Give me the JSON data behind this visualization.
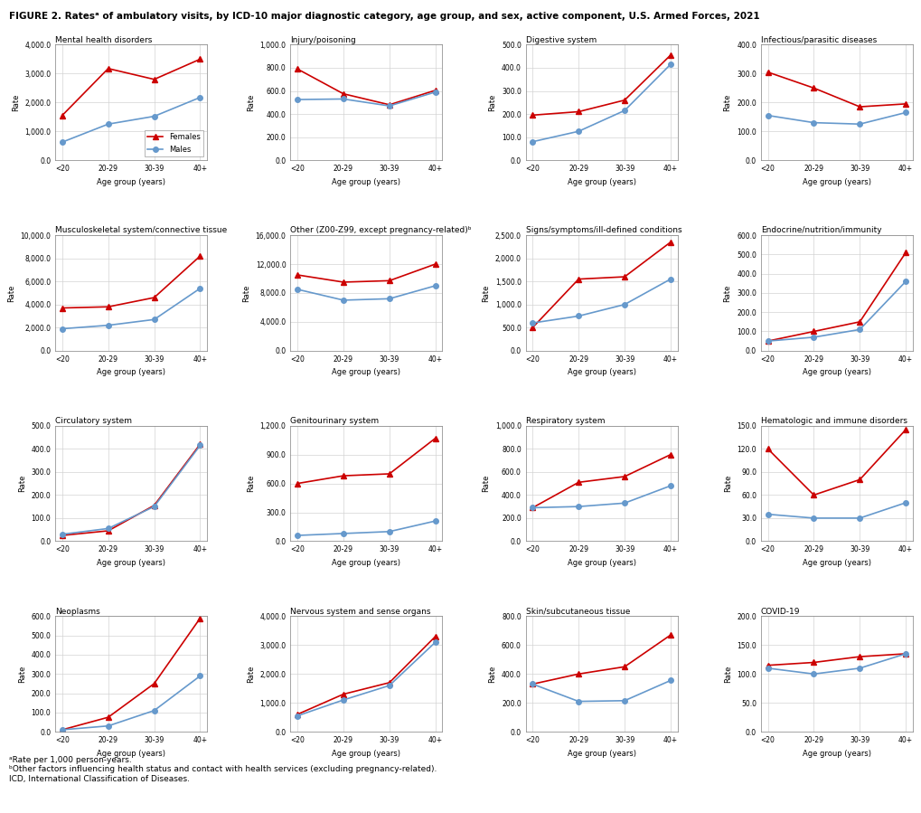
{
  "title": "FIGURE 2. Ratesᵃ of ambulatory visits, by ICD-10 major diagnostic category, age group, and sex, active component, U.S. Armed Forces, 2021",
  "footnotes": [
    "ᵃRate per 1,000 person-years.",
    "ᵇOther factors influencing health status and contact with health services (excluding pregnancy-related).",
    "ICD, International Classification of Diseases."
  ],
  "age_groups": [
    "<20",
    "20-29",
    "30-39",
    "40+"
  ],
  "female_color": "#cc0000",
  "male_color": "#6699cc",
  "charts": [
    {
      "title": "Mental health disorders",
      "ylim": [
        0,
        4000
      ],
      "yticks": [
        0,
        1000,
        2000,
        3000,
        4000
      ],
      "ytick_labels": [
        "0.0",
        "1,000.0",
        "2,000.0",
        "3,000.0",
        "4,000.0"
      ],
      "females": [
        1550,
        3175,
        2800,
        3500
      ],
      "males": [
        625,
        1250,
        1520,
        2175
      ],
      "legend": true
    },
    {
      "title": "Injury/poisoning",
      "ylim": [
        0,
        1000
      ],
      "yticks": [
        0,
        200,
        400,
        600,
        800,
        1000
      ],
      "ytick_labels": [
        "0.0",
        "200.0",
        "400.0",
        "600.0",
        "800.0",
        "1,000.0"
      ],
      "females": [
        790,
        575,
        480,
        605
      ],
      "males": [
        525,
        530,
        470,
        590
      ],
      "legend": false
    },
    {
      "title": "Digestive system",
      "ylim": [
        0,
        500
      ],
      "yticks": [
        0,
        100,
        200,
        300,
        400,
        500
      ],
      "ytick_labels": [
        "0.0",
        "100.0",
        "200.0",
        "300.0",
        "400.0",
        "500.0"
      ],
      "females": [
        195,
        210,
        260,
        455
      ],
      "males": [
        80,
        125,
        215,
        415
      ],
      "legend": false
    },
    {
      "title": "Infectious/parasitic diseases",
      "ylim": [
        0,
        400
      ],
      "yticks": [
        0,
        100,
        200,
        300,
        400
      ],
      "ytick_labels": [
        "0.0",
        "100.0",
        "200.0",
        "300.0",
        "400.0"
      ],
      "females": [
        305,
        250,
        185,
        195
      ],
      "males": [
        155,
        130,
        125,
        165
      ],
      "legend": false
    },
    {
      "title": "Musculoskeletal system/connective tissue",
      "ylim": [
        0,
        10000
      ],
      "yticks": [
        0,
        2000,
        4000,
        6000,
        8000,
        10000
      ],
      "ytick_labels": [
        "0.0",
        "2,000.0",
        "4,000.0",
        "6,000.0",
        "8,000.0",
        "10,000.0"
      ],
      "females": [
        3700,
        3800,
        4600,
        8200
      ],
      "males": [
        1900,
        2200,
        2700,
        5400
      ],
      "legend": false
    },
    {
      "title": "Other (Z00-Z99, except pregnancy-related)ᵇ",
      "ylim": [
        0,
        16000
      ],
      "yticks": [
        0,
        4000,
        8000,
        12000,
        16000
      ],
      "ytick_labels": [
        "0.0",
        "4,000.0",
        "8,000.0",
        "12,000.0",
        "16,000.0"
      ],
      "females": [
        10500,
        9500,
        9700,
        12000
      ],
      "males": [
        8500,
        7000,
        7200,
        9000
      ],
      "legend": false
    },
    {
      "title": "Signs/symptoms/ill-defined conditions",
      "ylim": [
        0,
        2500
      ],
      "yticks": [
        0,
        500,
        1000,
        1500,
        2000,
        2500
      ],
      "ytick_labels": [
        "0.0",
        "500.0",
        "1,000.0",
        "1,500.0",
        "2,000.0",
        "2,500.0"
      ],
      "females": [
        500,
        1550,
        1600,
        2350
      ],
      "males": [
        600,
        750,
        1000,
        1550
      ],
      "legend": false
    },
    {
      "title": "Endocrine/nutrition/immunity",
      "ylim": [
        0,
        600
      ],
      "yticks": [
        0,
        100,
        200,
        300,
        400,
        500,
        600
      ],
      "ytick_labels": [
        "0.0",
        "100.0",
        "200.0",
        "300.0",
        "400.0",
        "500.0",
        "600.0"
      ],
      "females": [
        50,
        100,
        150,
        510
      ],
      "males": [
        50,
        70,
        110,
        360
      ],
      "legend": false
    },
    {
      "title": "Circulatory system",
      "ylim": [
        0,
        500
      ],
      "yticks": [
        0,
        100,
        200,
        300,
        400,
        500
      ],
      "ytick_labels": [
        "0.0",
        "100.0",
        "200.0",
        "300.0",
        "400.0",
        "500.0"
      ],
      "females": [
        25,
        45,
        155,
        420
      ],
      "males": [
        30,
        55,
        150,
        415
      ],
      "legend": false
    },
    {
      "title": "Genitourinary system",
      "ylim": [
        0,
        1200
      ],
      "yticks": [
        0,
        300,
        600,
        900,
        1200
      ],
      "ytick_labels": [
        "0.0",
        "300.0",
        "600.0",
        "900.0",
        "1,200.0"
      ],
      "females": [
        600,
        680,
        700,
        1070
      ],
      "males": [
        60,
        80,
        100,
        210
      ],
      "legend": false
    },
    {
      "title": "Respiratory system",
      "ylim": [
        0,
        1000
      ],
      "yticks": [
        0,
        200,
        400,
        600,
        800,
        1000
      ],
      "ytick_labels": [
        "0.0",
        "200.0",
        "400.0",
        "600.0",
        "800.0",
        "1,000.0"
      ],
      "females": [
        290,
        510,
        560,
        750
      ],
      "males": [
        290,
        300,
        330,
        480
      ],
      "legend": false
    },
    {
      "title": "Hematologic and immune disorders",
      "ylim": [
        0,
        150
      ],
      "yticks": [
        0,
        30,
        60,
        90,
        120,
        150
      ],
      "ytick_labels": [
        "0.0",
        "30.0",
        "60.0",
        "90.0",
        "120.0",
        "150.0"
      ],
      "females": [
        120,
        60,
        80,
        145
      ],
      "males": [
        35,
        30,
        30,
        50
      ],
      "legend": false
    },
    {
      "title": "Neoplasms",
      "ylim": [
        0,
        600
      ],
      "yticks": [
        0,
        100,
        200,
        300,
        400,
        500,
        600
      ],
      "ytick_labels": [
        "0.0",
        "100.0",
        "200.0",
        "300.0",
        "400.0",
        "500.0",
        "600.0"
      ],
      "females": [
        10,
        75,
        250,
        590
      ],
      "males": [
        10,
        30,
        110,
        290
      ],
      "legend": false
    },
    {
      "title": "Nervous system and sense organs",
      "ylim": [
        0,
        4000
      ],
      "yticks": [
        0,
        1000,
        2000,
        3000,
        4000
      ],
      "ytick_labels": [
        "0.0",
        "1,000.0",
        "2,000.0",
        "3,000.0",
        "4,000.0"
      ],
      "females": [
        600,
        1300,
        1700,
        3300
      ],
      "males": [
        550,
        1100,
        1600,
        3100
      ],
      "legend": false
    },
    {
      "title": "Skin/subcutaneous tissue",
      "ylim": [
        0,
        800
      ],
      "yticks": [
        0,
        200,
        400,
        600,
        800
      ],
      "ytick_labels": [
        "0.0",
        "200.0",
        "400.0",
        "600.0",
        "800.0"
      ],
      "females": [
        330,
        400,
        450,
        670
      ],
      "males": [
        330,
        210,
        215,
        355
      ],
      "legend": false
    },
    {
      "title": "COVID-19",
      "ylim": [
        0,
        200
      ],
      "yticks": [
        0,
        50,
        100,
        150,
        200
      ],
      "ytick_labels": [
        "0.0",
        "50.0",
        "100.0",
        "150.0",
        "200.0"
      ],
      "females": [
        115,
        120,
        130,
        135
      ],
      "males": [
        110,
        100,
        110,
        135
      ],
      "legend": false
    }
  ]
}
